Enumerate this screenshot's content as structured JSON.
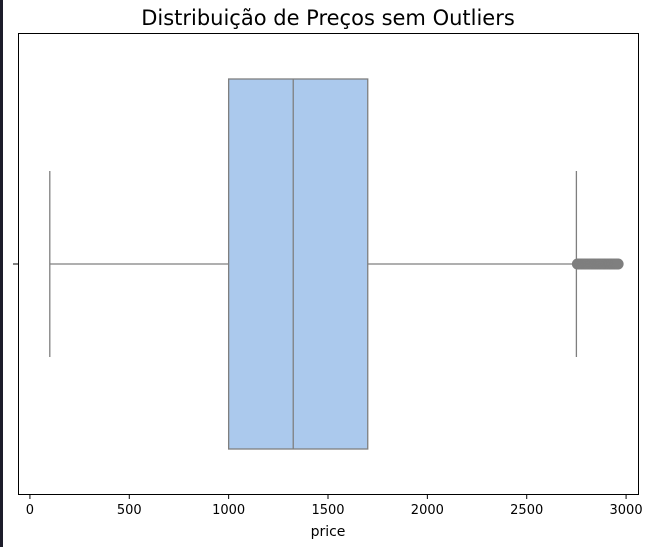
{
  "chart_data": {
    "type": "boxplot",
    "title": "Distribuição de Preços sem Outliers",
    "xlabel": "price",
    "ylabel": "",
    "xlim": [
      -60,
      3060
    ],
    "xticks": [
      0,
      500,
      1000,
      1500,
      2000,
      2500,
      3000
    ],
    "grid": false,
    "box": {
      "whisker_low": 100,
      "q1": 1000,
      "median": 1325,
      "q3": 1700,
      "whisker_high": 2750,
      "outliers_range": [
        2755,
        2960
      ],
      "fill_color": "#abc9ed",
      "line_color": "#7f7f7f"
    }
  }
}
